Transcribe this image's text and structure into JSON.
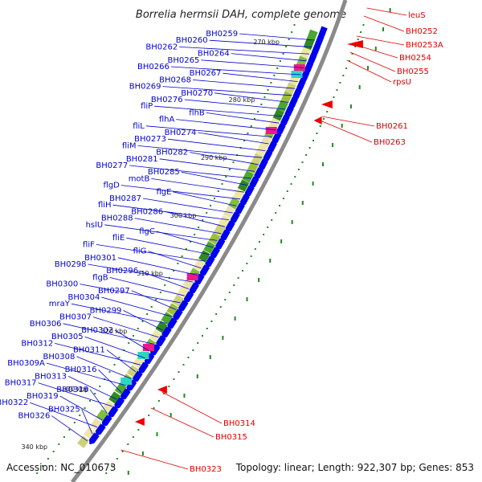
{
  "title": "Borrelia hermsii DAH, complete genome",
  "footer": {
    "accession": "Accession: NC_010673",
    "topology": "Topology: linear; Length: 922,307 bp; Genes: 853"
  },
  "colors": {
    "forward_label": "#0000cc",
    "reverse_label": "#dd0000",
    "forward_gene": "#0000ee",
    "reverse_gene": "#ee0000",
    "backbone": "#8a8a8a",
    "tick_mark": "#228822"
  },
  "ticks": [
    "270 kbp",
    "280 kbp",
    "290 kbp",
    "300 kbp",
    "310 kbp",
    "320 kbp",
    "330 kbp",
    "340 kbp"
  ],
  "forward_labels": [
    "BH0259",
    "BH0260",
    "BH0262",
    "BH0264",
    "BH0265",
    "BH0266",
    "BH0267",
    "BH0268",
    "BH0269",
    "BH0270",
    "BH0276",
    "fliP",
    "flhB",
    "flhA",
    "fliL",
    "BH0274",
    "BH0273",
    "fliM",
    "BH0282",
    "BH0281",
    "BH0277",
    "BH0285",
    "motB",
    "flgD",
    "flgE",
    "BH0287",
    "fliH",
    "BH0286",
    "BH0288",
    "hslU",
    "flgC",
    "fliE",
    "fliF",
    "fliG",
    "BH0301",
    "BH0298",
    "BH0296",
    "flgB",
    "BH0300",
    "BH0297",
    "BH0304",
    "mraY",
    "BH0299",
    "BH0307",
    "BH0306",
    "BH0302",
    "BH0305",
    "BH0312",
    "BH0311",
    "BH0308",
    "BH0309A",
    "BH0316",
    "BH0313",
    "BH0317",
    "BH0318",
    "BH0319",
    "BH0322",
    "BH0325",
    "BH0326"
  ],
  "reverse_labels": [
    "leuS",
    "BH0252",
    "BH0253A",
    "BH0254",
    "BH0255",
    "rpsU",
    "BH0261",
    "BH0263",
    "BH0314",
    "BH0315",
    "BH0323"
  ]
}
